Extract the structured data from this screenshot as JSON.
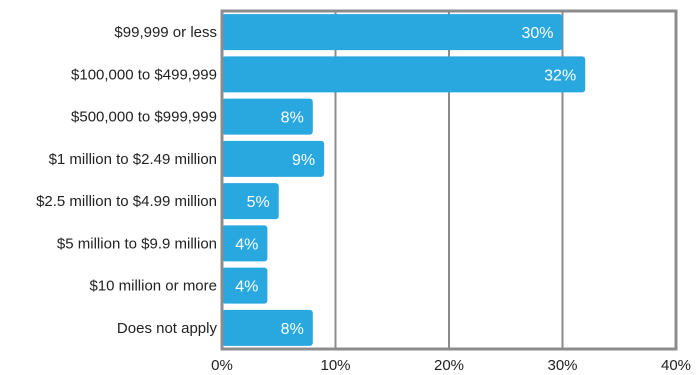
{
  "chart_data": {
    "type": "bar",
    "orientation": "horizontal",
    "categories": [
      "$99,999 or less",
      "$100,000 to $499,999",
      "$500,000 to $999,999",
      "$1 million to $2.49 million",
      "$2.5 million to $4.99 million",
      "$5 million to $9.9 million",
      "$10 million or more",
      "Does not apply"
    ],
    "values": [
      30,
      32,
      8,
      9,
      5,
      4,
      4,
      8
    ],
    "value_labels": [
      "30%",
      "32%",
      "8%",
      "9%",
      "5%",
      "4%",
      "4%",
      "8%"
    ],
    "xlim": [
      0,
      40
    ],
    "x_ticks": [
      0,
      10,
      20,
      30,
      40
    ],
    "x_tick_labels": [
      "0%",
      "10%",
      "20%",
      "30%",
      "40%"
    ],
    "grid": true,
    "bar_color": "#29a8e0",
    "axis_color": "#8c8c8c"
  }
}
